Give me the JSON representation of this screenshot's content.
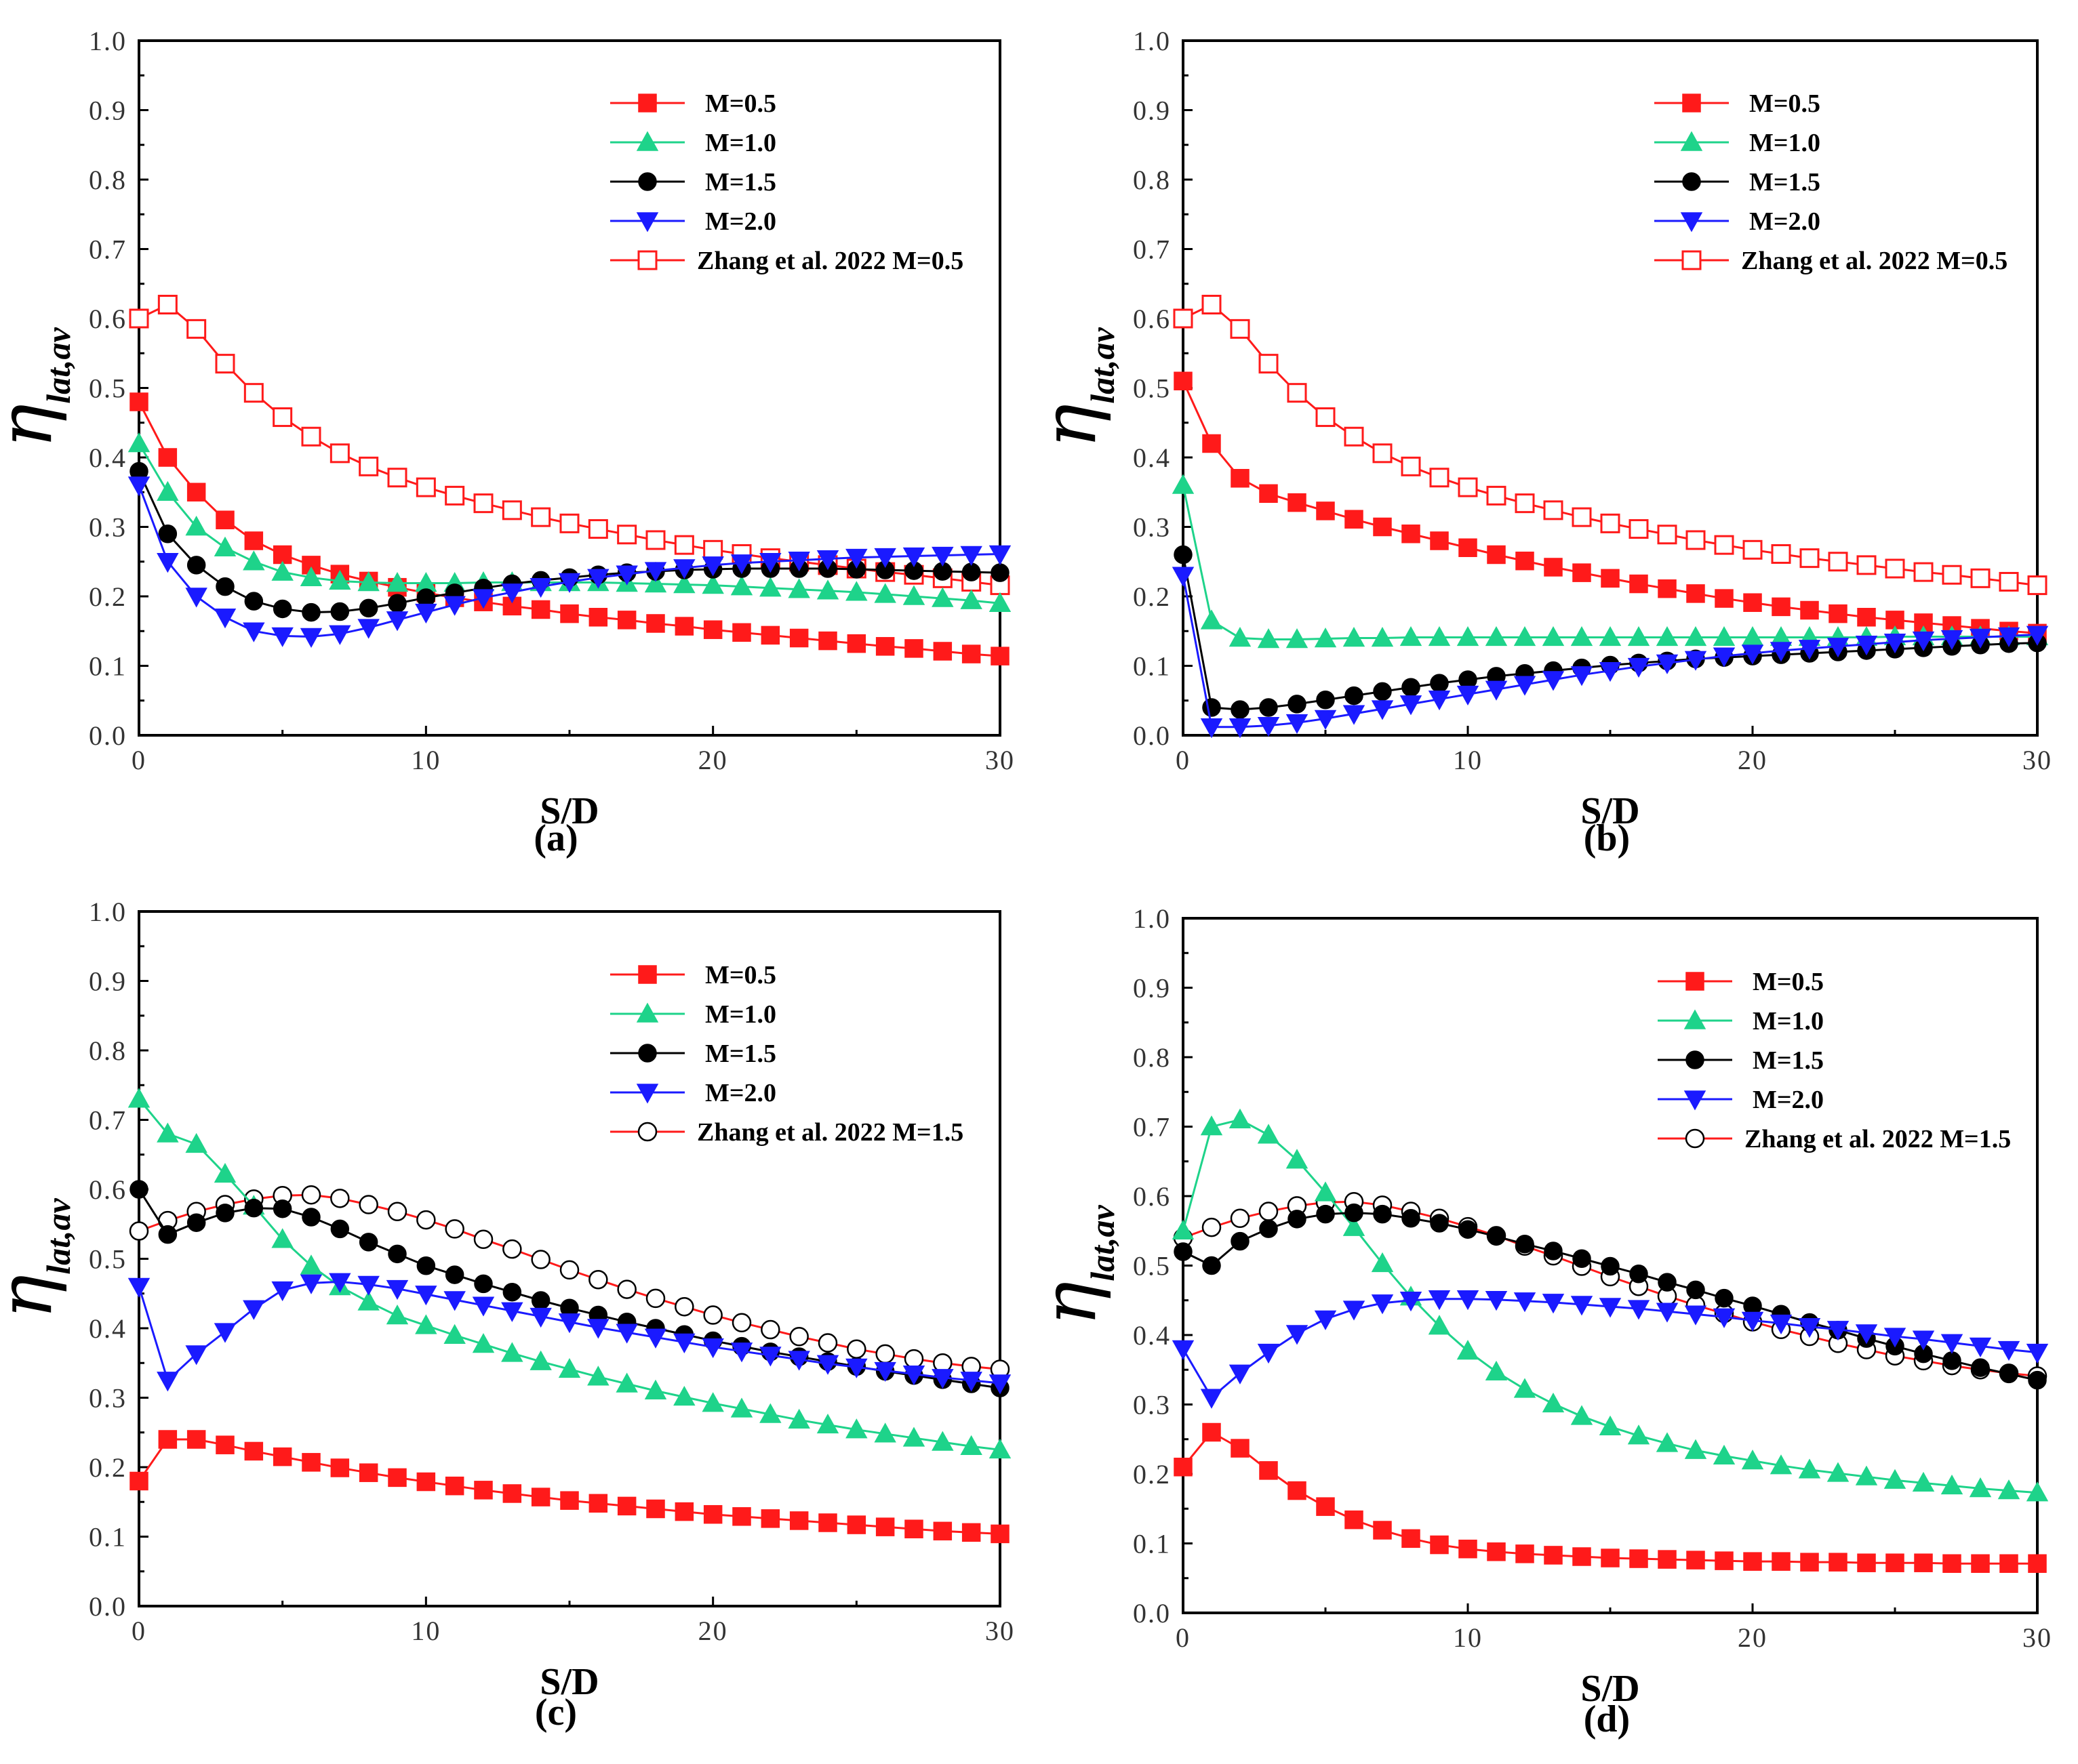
{
  "chart_data": [
    {
      "type": "line",
      "panel_label": "(a)",
      "xlabel": "S/D",
      "ylabel": {
        "symbol": "η",
        "subscript": "lat,av"
      },
      "xlim": [
        0,
        30
      ],
      "ylim": [
        0,
        1.0
      ],
      "xticks": [
        0,
        10,
        20,
        30
      ],
      "yticks": [
        "0.0",
        "0.1",
        "0.2",
        "0.3",
        "0.4",
        "0.5",
        "0.6",
        "0.7",
        "0.8",
        "0.9",
        "1.0"
      ],
      "legend_position": "top-right",
      "series": [
        {
          "name": "M=0.5",
          "color": "#ff1a1a",
          "marker": "square",
          "filled": true,
          "values": [
            0.48,
            0.4,
            0.35,
            0.31,
            0.28,
            0.26,
            0.245,
            0.232,
            0.222,
            0.213,
            0.205,
            0.198,
            0.192,
            0.186,
            0.181,
            0.175,
            0.17,
            0.166,
            0.161,
            0.157,
            0.152,
            0.148,
            0.144,
            0.14,
            0.136,
            0.132,
            0.128,
            0.125,
            0.121,
            0.117,
            0.114
          ]
        },
        {
          "name": "M=1.0",
          "color": "#1ed38a",
          "marker": "triangle-up",
          "filled": true,
          "values": [
            0.42,
            0.35,
            0.3,
            0.27,
            0.25,
            0.235,
            0.227,
            0.222,
            0.22,
            0.219,
            0.219,
            0.219,
            0.22,
            0.22,
            0.22,
            0.22,
            0.22,
            0.219,
            0.218,
            0.217,
            0.216,
            0.214,
            0.212,
            0.21,
            0.208,
            0.206,
            0.203,
            0.2,
            0.197,
            0.194,
            0.19
          ]
        },
        {
          "name": "M=1.5",
          "color": "#000000",
          "marker": "circle",
          "filled": true,
          "values": [
            0.38,
            0.29,
            0.245,
            0.214,
            0.193,
            0.182,
            0.177,
            0.178,
            0.183,
            0.19,
            0.198,
            0.205,
            0.212,
            0.218,
            0.223,
            0.227,
            0.231,
            0.234,
            0.236,
            0.238,
            0.239,
            0.24,
            0.24,
            0.24,
            0.24,
            0.239,
            0.238,
            0.237,
            0.236,
            0.235,
            0.234
          ]
        },
        {
          "name": "M=2.0",
          "color": "#1a1aff",
          "marker": "triangle-down",
          "filled": true,
          "values": [
            0.36,
            0.25,
            0.2,
            0.17,
            0.15,
            0.143,
            0.142,
            0.146,
            0.155,
            0.166,
            0.177,
            0.188,
            0.198,
            0.206,
            0.214,
            0.221,
            0.227,
            0.232,
            0.237,
            0.241,
            0.245,
            0.248,
            0.25,
            0.252,
            0.254,
            0.256,
            0.257,
            0.258,
            0.259,
            0.26,
            0.261
          ]
        },
        {
          "name": "Zhang et al. 2022 M=0.5",
          "color": "#ff1a1a",
          "marker": "square",
          "filled": false,
          "values": [
            0.6,
            0.62,
            0.585,
            0.535,
            0.493,
            0.458,
            0.43,
            0.406,
            0.387,
            0.371,
            0.357,
            0.345,
            0.334,
            0.324,
            0.314,
            0.305,
            0.297,
            0.289,
            0.281,
            0.274,
            0.267,
            0.261,
            0.255,
            0.25,
            0.245,
            0.24,
            0.235,
            0.231,
            0.226,
            0.221,
            0.216
          ]
        }
      ]
    },
    {
      "type": "line",
      "panel_label": "(b)",
      "xlabel": "S/D",
      "ylabel": {
        "symbol": "η",
        "subscript": "lat,av"
      },
      "xlim": [
        0,
        30
      ],
      "ylim": [
        0,
        1.0
      ],
      "xticks": [
        0,
        10,
        20,
        30
      ],
      "yticks": [
        "0.0",
        "0.1",
        "0.2",
        "0.3",
        "0.4",
        "0.5",
        "0.6",
        "0.7",
        "0.8",
        "0.9",
        "1.0"
      ],
      "legend_position": "top-right",
      "series": [
        {
          "name": "M=0.5",
          "color": "#ff1a1a",
          "marker": "square",
          "filled": true,
          "values": [
            0.51,
            0.42,
            0.37,
            0.348,
            0.335,
            0.323,
            0.311,
            0.3,
            0.29,
            0.28,
            0.27,
            0.26,
            0.251,
            0.242,
            0.234,
            0.226,
            0.218,
            0.211,
            0.204,
            0.197,
            0.191,
            0.185,
            0.18,
            0.175,
            0.17,
            0.166,
            0.162,
            0.158,
            0.154,
            0.15,
            0.147
          ]
        },
        {
          "name": "M=1.0",
          "color": "#1ed38a",
          "marker": "triangle-up",
          "filled": true,
          "values": [
            0.36,
            0.165,
            0.14,
            0.138,
            0.138,
            0.139,
            0.14,
            0.14,
            0.141,
            0.141,
            0.141,
            0.141,
            0.141,
            0.141,
            0.141,
            0.141,
            0.141,
            0.141,
            0.141,
            0.141,
            0.141,
            0.141,
            0.141,
            0.141,
            0.141,
            0.142,
            0.142,
            0.142,
            0.142,
            0.142,
            0.142
          ]
        },
        {
          "name": "M=1.5",
          "color": "#000000",
          "marker": "circle",
          "filled": true,
          "values": [
            0.26,
            0.04,
            0.037,
            0.04,
            0.045,
            0.051,
            0.057,
            0.063,
            0.069,
            0.075,
            0.08,
            0.085,
            0.089,
            0.093,
            0.097,
            0.101,
            0.104,
            0.107,
            0.11,
            0.112,
            0.114,
            0.116,
            0.118,
            0.12,
            0.122,
            0.124,
            0.126,
            0.128,
            0.13,
            0.132,
            0.133
          ]
        },
        {
          "name": "M=2.0",
          "color": "#1a1aff",
          "marker": "triangle-down",
          "filled": true,
          "values": [
            0.23,
            0.012,
            0.012,
            0.014,
            0.018,
            0.024,
            0.031,
            0.038,
            0.045,
            0.052,
            0.059,
            0.066,
            0.073,
            0.08,
            0.087,
            0.093,
            0.099,
            0.104,
            0.109,
            0.114,
            0.118,
            0.122,
            0.125,
            0.128,
            0.131,
            0.134,
            0.137,
            0.139,
            0.141,
            0.143,
            0.145
          ]
        },
        {
          "name": "Zhang et al. 2022 M=0.5",
          "color": "#ff1a1a",
          "marker": "square",
          "filled": false,
          "values": [
            0.6,
            0.62,
            0.585,
            0.535,
            0.493,
            0.458,
            0.43,
            0.406,
            0.387,
            0.371,
            0.357,
            0.345,
            0.334,
            0.324,
            0.314,
            0.305,
            0.297,
            0.289,
            0.281,
            0.274,
            0.267,
            0.261,
            0.255,
            0.25,
            0.245,
            0.24,
            0.235,
            0.231,
            0.226,
            0.221,
            0.216
          ]
        }
      ]
    },
    {
      "type": "line",
      "panel_label": "(c)",
      "xlabel": "S/D",
      "ylabel": {
        "symbol": "η",
        "subscript": "lat,av"
      },
      "xlim": [
        0,
        30
      ],
      "ylim": [
        0,
        1.0
      ],
      "xticks": [
        0,
        10,
        20,
        30
      ],
      "yticks": [
        "0.0",
        "0.1",
        "0.2",
        "0.3",
        "0.4",
        "0.5",
        "0.6",
        "0.7",
        "0.8",
        "0.9",
        "1.0"
      ],
      "legend_position": "top-right",
      "series": [
        {
          "name": "M=0.5",
          "color": "#ff1a1a",
          "marker": "square",
          "filled": true,
          "values": [
            0.18,
            0.24,
            0.24,
            0.232,
            0.223,
            0.215,
            0.207,
            0.199,
            0.192,
            0.185,
            0.179,
            0.173,
            0.167,
            0.162,
            0.157,
            0.152,
            0.148,
            0.144,
            0.14,
            0.136,
            0.132,
            0.129,
            0.126,
            0.123,
            0.12,
            0.117,
            0.114,
            0.111,
            0.108,
            0.106,
            0.104
          ]
        },
        {
          "name": "M=1.0",
          "color": "#1ed38a",
          "marker": "triangle-up",
          "filled": true,
          "values": [
            0.73,
            0.68,
            0.665,
            0.622,
            0.576,
            0.528,
            0.49,
            0.46,
            0.438,
            0.418,
            0.404,
            0.39,
            0.377,
            0.364,
            0.352,
            0.341,
            0.33,
            0.32,
            0.31,
            0.301,
            0.292,
            0.284,
            0.276,
            0.268,
            0.261,
            0.254,
            0.248,
            0.242,
            0.236,
            0.23,
            0.225
          ]
        },
        {
          "name": "M=1.5",
          "color": "#000000",
          "marker": "circle",
          "filled": true,
          "values": [
            0.6,
            0.535,
            0.552,
            0.566,
            0.573,
            0.572,
            0.56,
            0.543,
            0.524,
            0.507,
            0.49,
            0.477,
            0.464,
            0.452,
            0.44,
            0.429,
            0.419,
            0.409,
            0.4,
            0.391,
            0.382,
            0.374,
            0.366,
            0.359,
            0.352,
            0.345,
            0.338,
            0.332,
            0.326,
            0.32,
            0.314
          ]
        },
        {
          "name": "M=2.0",
          "color": "#1a1aff",
          "marker": "triangle-down",
          "filled": true,
          "values": [
            0.46,
            0.325,
            0.363,
            0.395,
            0.428,
            0.455,
            0.465,
            0.467,
            0.463,
            0.457,
            0.449,
            0.441,
            0.433,
            0.425,
            0.417,
            0.409,
            0.401,
            0.394,
            0.387,
            0.38,
            0.373,
            0.367,
            0.361,
            0.355,
            0.349,
            0.344,
            0.339,
            0.334,
            0.329,
            0.325,
            0.321
          ]
        },
        {
          "name": "Zhang et al. 2022 M=1.5",
          "color": "#ff1a1a",
          "marker": "circle",
          "filled": false,
          "values": [
            0.54,
            0.555,
            0.568,
            0.578,
            0.586,
            0.591,
            0.592,
            0.587,
            0.578,
            0.568,
            0.556,
            0.543,
            0.528,
            0.514,
            0.499,
            0.484,
            0.47,
            0.456,
            0.443,
            0.431,
            0.419,
            0.408,
            0.398,
            0.388,
            0.379,
            0.37,
            0.363,
            0.356,
            0.35,
            0.345,
            0.341
          ]
        }
      ]
    },
    {
      "type": "line",
      "panel_label": "(d)",
      "xlabel": "S/D",
      "ylabel": {
        "symbol": "η",
        "subscript": "lat,av"
      },
      "xlim": [
        0,
        30
      ],
      "ylim": [
        0,
        1.0
      ],
      "xticks": [
        0,
        10,
        20,
        30
      ],
      "yticks": [
        "0.0",
        "0.1",
        "0.2",
        "0.3",
        "0.4",
        "0.5",
        "0.6",
        "0.7",
        "0.8",
        "0.9",
        "1.0"
      ],
      "legend_position": "top-right",
      "series": [
        {
          "name": "M=0.5",
          "color": "#ff1a1a",
          "marker": "square",
          "filled": true,
          "values": [
            0.21,
            0.26,
            0.237,
            0.205,
            0.176,
            0.153,
            0.134,
            0.119,
            0.107,
            0.098,
            0.092,
            0.088,
            0.085,
            0.083,
            0.081,
            0.079,
            0.078,
            0.077,
            0.076,
            0.075,
            0.074,
            0.074,
            0.073,
            0.073,
            0.072,
            0.072,
            0.072,
            0.071,
            0.071,
            0.071,
            0.071
          ]
        },
        {
          "name": "M=1.0",
          "color": "#1ed38a",
          "marker": "triangle-up",
          "filled": true,
          "values": [
            0.55,
            0.7,
            0.71,
            0.688,
            0.652,
            0.605,
            0.555,
            0.503,
            0.455,
            0.413,
            0.377,
            0.347,
            0.322,
            0.301,
            0.283,
            0.268,
            0.255,
            0.244,
            0.234,
            0.226,
            0.219,
            0.212,
            0.206,
            0.201,
            0.196,
            0.191,
            0.187,
            0.183,
            0.179,
            0.176,
            0.173
          ]
        },
        {
          "name": "M=1.5",
          "color": "#000000",
          "marker": "circle",
          "filled": true,
          "values": [
            0.52,
            0.5,
            0.535,
            0.553,
            0.567,
            0.574,
            0.576,
            0.574,
            0.568,
            0.561,
            0.552,
            0.542,
            0.531,
            0.521,
            0.51,
            0.499,
            0.488,
            0.476,
            0.465,
            0.453,
            0.442,
            0.43,
            0.418,
            0.407,
            0.395,
            0.384,
            0.373,
            0.363,
            0.353,
            0.344,
            0.335
          ]
        },
        {
          "name": "M=2.0",
          "color": "#1a1aff",
          "marker": "triangle-down",
          "filled": true,
          "values": [
            0.38,
            0.31,
            0.345,
            0.375,
            0.402,
            0.423,
            0.437,
            0.446,
            0.45,
            0.452,
            0.452,
            0.451,
            0.449,
            0.447,
            0.444,
            0.441,
            0.438,
            0.434,
            0.43,
            0.426,
            0.421,
            0.417,
            0.412,
            0.408,
            0.403,
            0.398,
            0.394,
            0.389,
            0.384,
            0.379,
            0.375
          ]
        },
        {
          "name": "Zhang et al. 2022 M=1.5",
          "color": "#ff1a1a",
          "marker": "circle",
          "filled": false,
          "values": [
            0.54,
            0.555,
            0.568,
            0.578,
            0.586,
            0.591,
            0.592,
            0.587,
            0.578,
            0.568,
            0.556,
            0.543,
            0.528,
            0.514,
            0.499,
            0.484,
            0.47,
            0.456,
            0.443,
            0.431,
            0.419,
            0.408,
            0.398,
            0.388,
            0.379,
            0.37,
            0.363,
            0.356,
            0.35,
            0.345,
            0.341
          ]
        }
      ]
    }
  ]
}
